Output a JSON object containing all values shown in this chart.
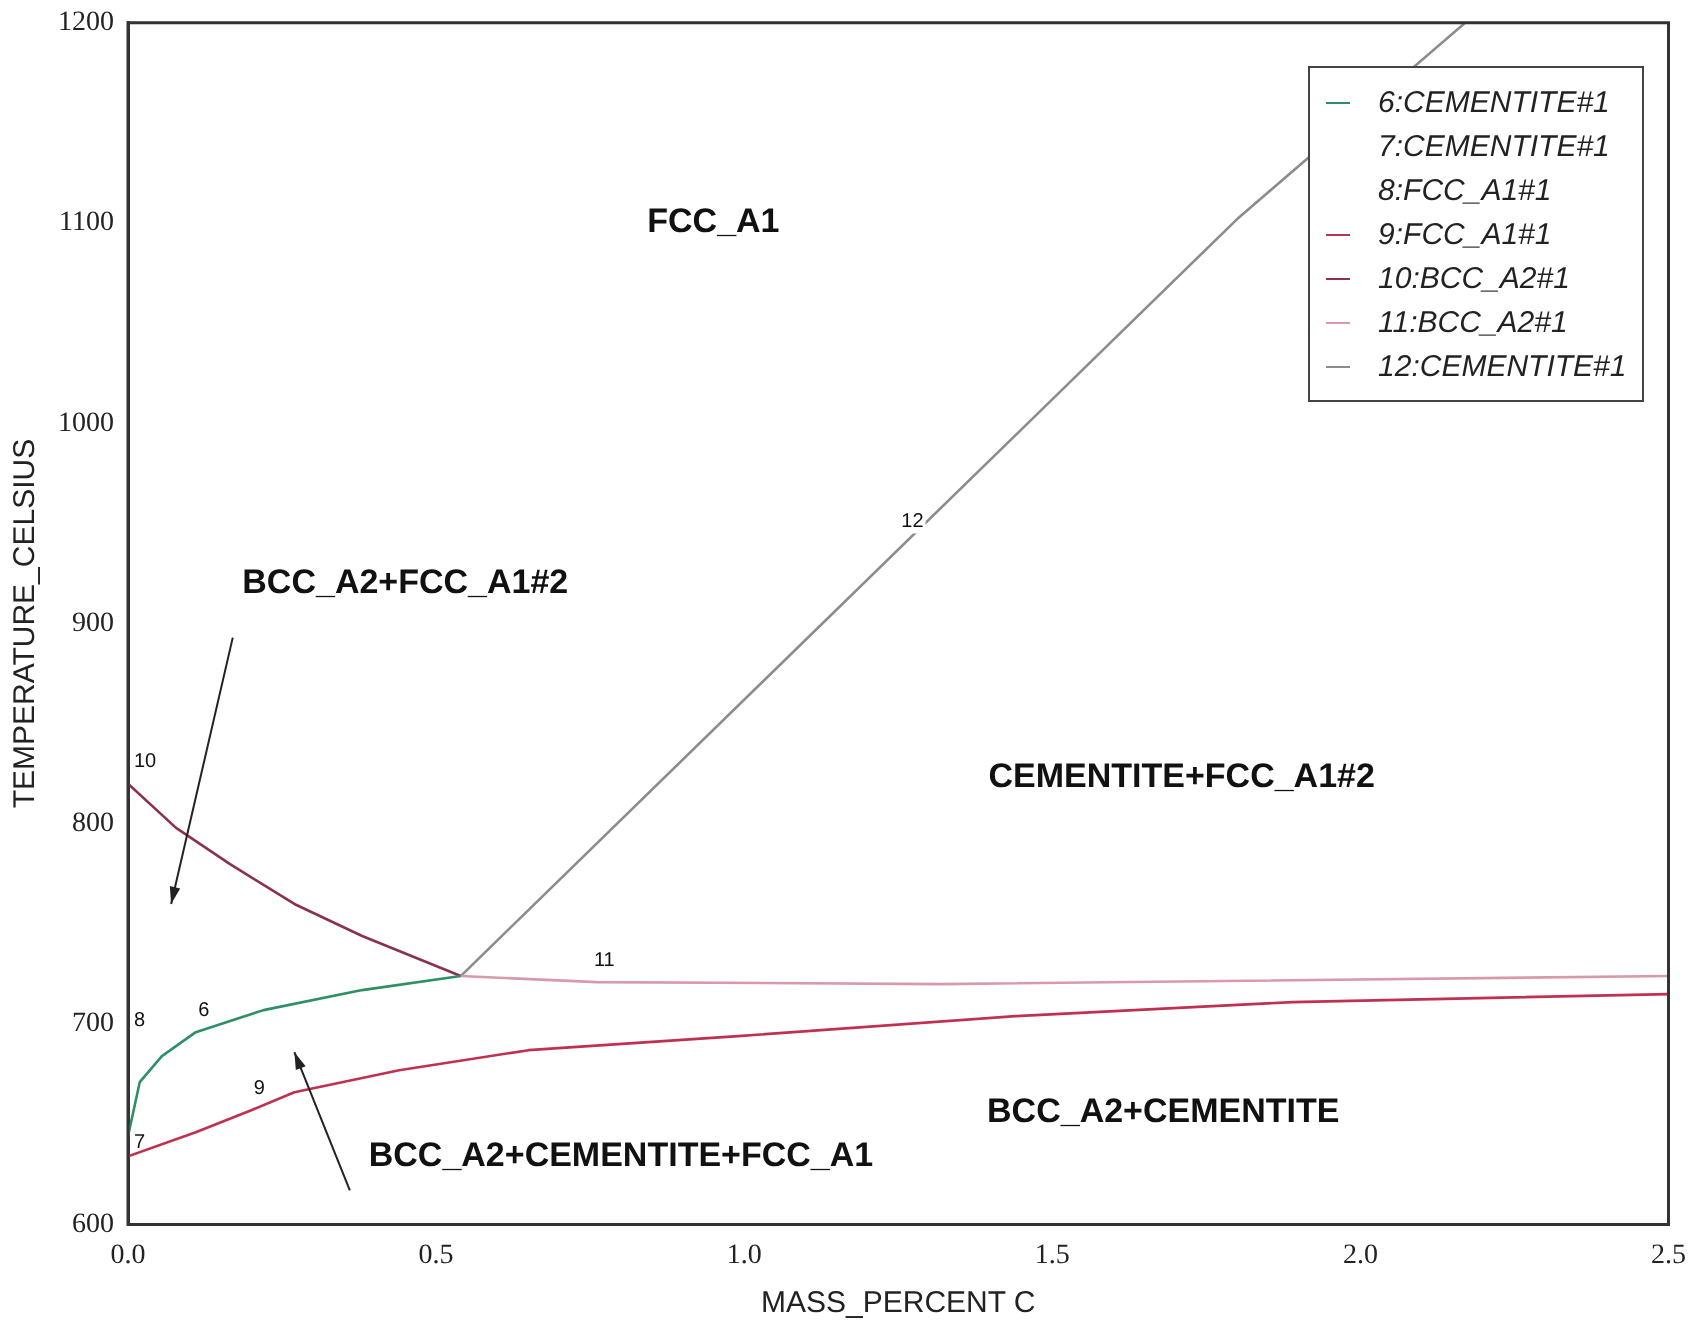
{
  "chart_data": {
    "type": "line",
    "xlabel": "MASS_PERCENT C",
    "ylabel": "TEMPERATURE_CELSIUS",
    "xlim": [
      0,
      2.5
    ],
    "xticks": [
      {
        "value": 0,
        "label": "0.0"
      },
      {
        "value": 0.5,
        "label": "0.5"
      },
      {
        "value": 1,
        "label": "1.0"
      },
      {
        "value": 1.5,
        "label": "1.5"
      },
      {
        "value": 2,
        "label": "2.0"
      },
      {
        "value": 2.5,
        "label": "2.5"
      }
    ],
    "ylim": [
      600,
      1200
    ],
    "yticks": [
      600,
      700,
      800,
      900,
      1000,
      1100,
      1200
    ],
    "grid": false,
    "legend": "top right",
    "marker": "none",
    "line_style": "solid",
    "series": [
      {
        "name": "6:CEMENTITE#1",
        "color": "#2f8f64",
        "x": [
          0,
          0.019,
          0.055,
          0.11,
          0.22,
          0.38,
          0.54
        ],
        "values": [
          644,
          671,
          684,
          696,
          707,
          717,
          724
        ]
      },
      {
        "name": "7:CEMENTITE#1"
      },
      {
        "name": "8:FCC_A1#1"
      },
      {
        "name": "9:FCC_A1#1",
        "color": "#c03050",
        "x": [
          0,
          0.11,
          0.2,
          0.27,
          0.44,
          0.65,
          0.99,
          1.44,
          1.89,
          2.5
        ],
        "values": [
          634,
          646,
          657,
          666,
          677,
          687,
          694,
          704,
          711,
          715
        ]
      },
      {
        "name": "10:BCC_A2#1",
        "color": "#8b3050",
        "x": [
          0,
          0.078,
          0.165,
          0.27,
          0.38,
          0.54
        ],
        "values": [
          820,
          798,
          780,
          760,
          744,
          724
        ]
      },
      {
        "name": "11:BCC_A2#1",
        "color": "#d89aaa",
        "x": [
          0.54,
          0.76,
          1.32,
          2.5
        ],
        "values": [
          724,
          721,
          720,
          724
        ]
      },
      {
        "name": "12:CEMENTITE#1",
        "color": "#8c8c8c",
        "x": [
          0.54,
          1.8,
          2.17
        ],
        "values": [
          724,
          1102,
          1200
        ]
      }
    ],
    "annotations": [
      "FCC_A1",
      "BCC_A2+FCC_A1#2",
      "CEMENTITE+FCC_A1#2",
      "BCC_A2+CEMENTITE",
      "BCC_A2+CEMENTITE+FCC_A1",
      "7",
      "8",
      {
        "text": "10",
        "x": 0,
        "y": 820
      },
      {
        "text": "6",
        "x": 0.11,
        "y": 696
      },
      {
        "text": "9",
        "x": 0.2,
        "y": 657
      },
      {
        "text": "11",
        "x": 0.76,
        "y": 721
      },
      {
        "text": "12",
        "x": 1.26,
        "y": 940
      }
    ]
  }
}
